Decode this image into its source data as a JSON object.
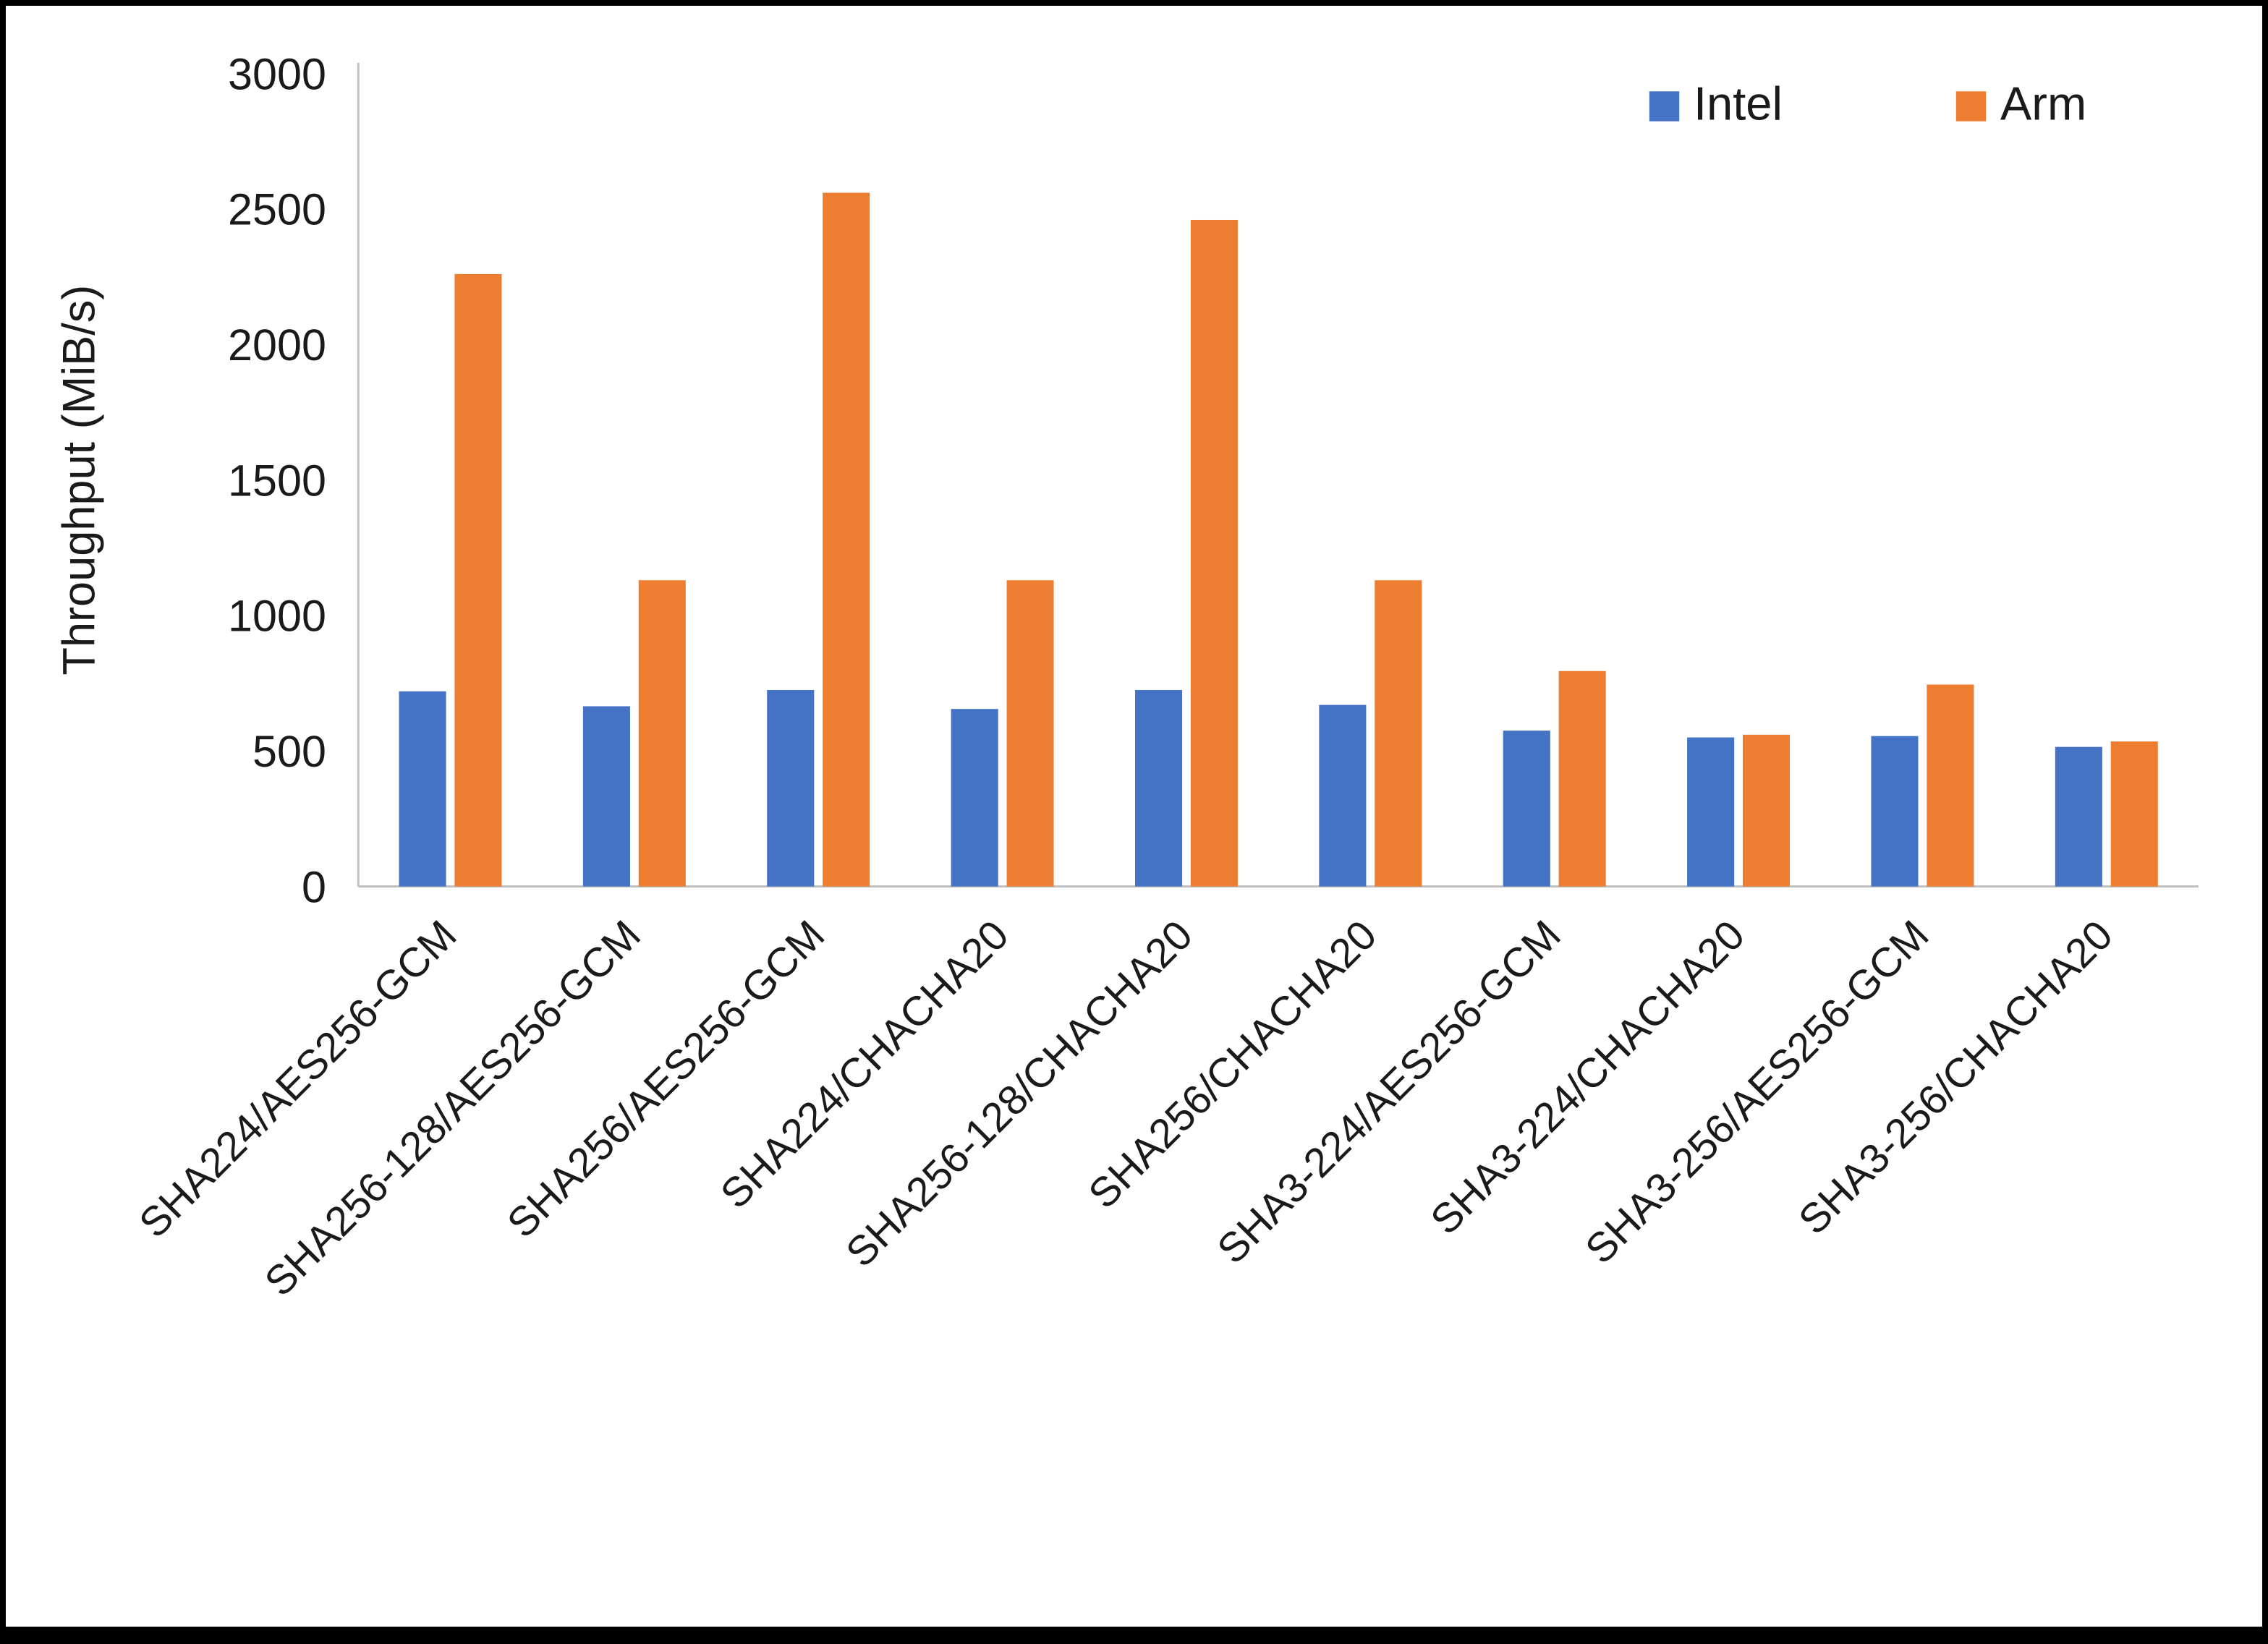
{
  "chart_data": {
    "type": "bar",
    "title": "",
    "xlabel": "",
    "ylabel": "Throughput (MiB/s)",
    "ylim": [
      0,
      3000
    ],
    "ytick_interval": 500,
    "ytick_labels": [
      "0",
      "500",
      "1000",
      "1500",
      "2000",
      "2500",
      "3000"
    ],
    "grid": false,
    "legend_position": "top-right",
    "categories": [
      "SHA224/AES256-GCM",
      "SHA256-128/AES256-GCM",
      "SHA256/AES256-GCM",
      "SHA224/CHACHA20",
      "SHA256-128/CHACHA20",
      "SHA256/CHACHA20",
      "SHA3-224/AES256-GCM",
      "SHA3-224/CHACHA20",
      "SHA3-256/AES256-GCM",
      "SHA3-256/CHACHA20"
    ],
    "series": [
      {
        "name": "Intel",
        "color": "#4472C4",
        "values": [
          720,
          665,
          725,
          655,
          725,
          670,
          575,
          550,
          555,
          515
        ]
      },
      {
        "name": "Arm",
        "color": "#ED7D31",
        "values": [
          2260,
          1130,
          2560,
          1130,
          2460,
          1130,
          795,
          560,
          745,
          535
        ]
      }
    ]
  },
  "colors": {
    "background": "#FFFFFF",
    "border": "#000000",
    "axis_line": "#BFBFBF",
    "tick_text": "#1a1a1a",
    "label_text": "#1a1a1a"
  }
}
